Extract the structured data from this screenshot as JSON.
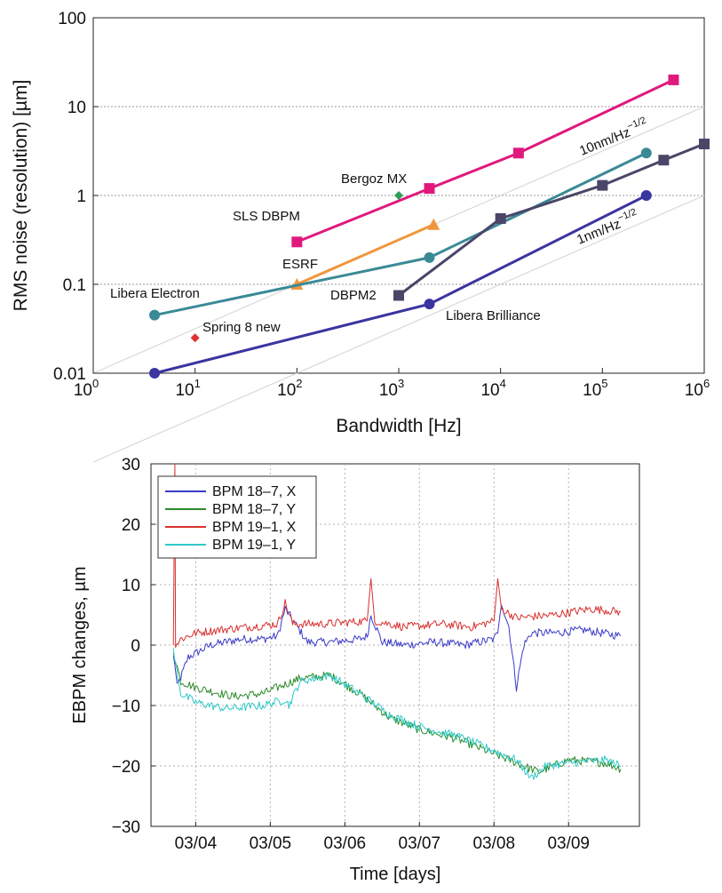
{
  "chart_data": [
    {
      "type": "line",
      "xscale": "log",
      "yscale": "log",
      "xlabel": "Bandwidth [Hz]",
      "ylabel": "RMS noise (resolution) [µm]",
      "xlim": [
        1,
        1000000
      ],
      "ylim": [
        0.01,
        100
      ],
      "grid": "horizontal dotted at decades",
      "x_ticks": [
        {
          "base": "10",
          "exp": "0"
        },
        {
          "base": "10",
          "exp": "1"
        },
        {
          "base": "10",
          "exp": "2"
        },
        {
          "base": "10",
          "exp": "3"
        },
        {
          "base": "10",
          "exp": "4"
        },
        {
          "base": "10",
          "exp": "5"
        },
        {
          "base": "10",
          "exp": "6"
        }
      ],
      "y_ticks": [
        "0.01",
        "0.1",
        "1",
        "10",
        "100"
      ],
      "series": [
        {
          "name": "SLS DBPM",
          "color": "#e0197d",
          "marker": "square",
          "x": [
            100,
            2000,
            15000,
            500000
          ],
          "y": [
            0.3,
            1.2,
            3.0,
            20
          ]
        },
        {
          "name": "ESRF",
          "color": "#f0963c",
          "marker": "triangle",
          "x": [
            100,
            2200
          ],
          "y": [
            0.1,
            0.47
          ]
        },
        {
          "name": "Libera Electron",
          "color": "#3a8a96",
          "marker": "circle",
          "x": [
            4,
            2000,
            270000
          ],
          "y": [
            0.045,
            0.2,
            3.0
          ]
        },
        {
          "name": "DBPM2",
          "color": "#4a4668",
          "marker": "square",
          "x": [
            1000,
            10000,
            100000,
            400000,
            1000000
          ],
          "y": [
            0.075,
            0.55,
            1.3,
            2.5,
            3.8
          ]
        },
        {
          "name": "Libera Brilliance",
          "color": "#3a35a0",
          "marker": "circle",
          "x": [
            4,
            2000,
            270000
          ],
          "y": [
            0.01,
            0.06,
            1.0
          ]
        },
        {
          "name": "Bergoz MX",
          "color": "#2e9e5a",
          "marker": "diamond",
          "x": [
            1000
          ],
          "y": [
            1.0
          ]
        },
        {
          "name": "Spring 8 new",
          "color": "#e03030",
          "marker": "diamond",
          "x": [
            10
          ],
          "y": [
            0.025
          ]
        }
      ],
      "reference_lines": [
        {
          "label_base": "10nm/Hz",
          "label_exp": "−1/2",
          "x": [
            1,
            1000000
          ],
          "y": [
            0.01,
            10
          ]
        },
        {
          "label_base": "1nm/Hz",
          "label_exp": "−1/2",
          "x": [
            1,
            1000000
          ],
          "y": [
            0.001,
            1
          ]
        }
      ]
    },
    {
      "type": "line",
      "xlabel": "Time [days]",
      "ylabel": "EBPM changes, µm",
      "xlim": [
        "03/03 09:30",
        "03/09 10:00"
      ],
      "ylim": [
        -30,
        30
      ],
      "x_ticks": [
        "03/04",
        "03/05",
        "03/06",
        "03/07",
        "03/08",
        "03/09"
      ],
      "y_ticks": [
        "30",
        "20",
        "10",
        "0",
        "−10",
        "−20",
        "−30"
      ],
      "grid": "dotted",
      "legend_position": "top-left",
      "series": [
        {
          "name": "BPM 18–7, X",
          "color": "#3a3ac8"
        },
        {
          "name": "BPM 18–7, Y",
          "color": "#2a8a2a"
        },
        {
          "name": "BPM 19–1, X",
          "color": "#d83030"
        },
        {
          "name": "BPM 19–1, Y",
          "color": "#30c8c8"
        }
      ],
      "approx_points": {
        "BPM 18–7, X": {
          "x": [
            -0.3,
            -0.28,
            -0.25,
            -0.1,
            0.2,
            0.6,
            0.9,
            1.1,
            1.2,
            1.5,
            1.8,
            2.2,
            2.3,
            2.35,
            2.5,
            2.8,
            3.2,
            3.6,
            4.0,
            4.05,
            4.1,
            4.2,
            4.3,
            4.4,
            4.5,
            4.8,
            5.2,
            5.7
          ],
          "y": [
            -2,
            -3,
            -7,
            -2,
            0,
            1,
            1,
            1.5,
            6,
            0.5,
            0.5,
            1,
            1.5,
            5,
            0.5,
            0,
            0.5,
            0,
            1,
            2,
            7,
            3,
            -7,
            0,
            2,
            2,
            2.5,
            1.5
          ]
        },
        "BPM 18–7, Y": {
          "x": [
            -0.3,
            -0.2,
            0,
            0.5,
            0.9,
            1.4,
            1.8,
            2.2,
            2.6,
            3.0,
            3.5,
            4.0,
            4.3,
            4.6,
            5.0,
            5.5,
            5.7
          ],
          "y": [
            -1,
            -6,
            -7,
            -8.5,
            -8,
            -5.5,
            -5,
            -8,
            -12,
            -14,
            -15.5,
            -18,
            -19.5,
            -21,
            -19,
            -19.5,
            -20.5
          ]
        },
        "BPM 19–1, X": {
          "x": [
            -0.3,
            -0.28,
            -0.27,
            -0.2,
            0,
            0.3,
            0.7,
            1.1,
            1.2,
            1.3,
            1.7,
            2.3,
            2.35,
            2.4,
            2.8,
            3.3,
            3.7,
            4.0,
            4.05,
            4.1,
            4.3,
            4.8,
            5.3,
            5.7
          ],
          "y": [
            0,
            30,
            0,
            1,
            2,
            2.5,
            3,
            3.5,
            7,
            3.5,
            3.5,
            4,
            11,
            4,
            3,
            3.5,
            3,
            4,
            11,
            6,
            4.5,
            5,
            6,
            5.5
          ]
        },
        "BPM 19–1, Y": {
          "x": [
            -0.3,
            -0.2,
            0,
            0.4,
            0.9,
            1.2,
            1.25,
            1.4,
            1.8,
            2.2,
            2.6,
            3.0,
            3.5,
            4.0,
            4.3,
            4.5,
            4.7,
            5.0,
            5.5,
            5.7
          ],
          "y": [
            -1,
            -8,
            -9.5,
            -10.5,
            -10,
            -9,
            -10,
            -6,
            -5,
            -8,
            -11.5,
            -13.5,
            -15,
            -17.5,
            -19,
            -22,
            -20,
            -19.5,
            -19,
            -20
          ]
        }
      }
    }
  ],
  "annotations": {
    "bergoz": "Bergoz MX",
    "sls": "SLS DBPM",
    "esrf": "ESRF",
    "libera_electron": "Libera Electron",
    "spring8": "Spring 8 new",
    "dbpm2": "DBPM2",
    "libera_brilliance": "Libera Brilliance"
  }
}
